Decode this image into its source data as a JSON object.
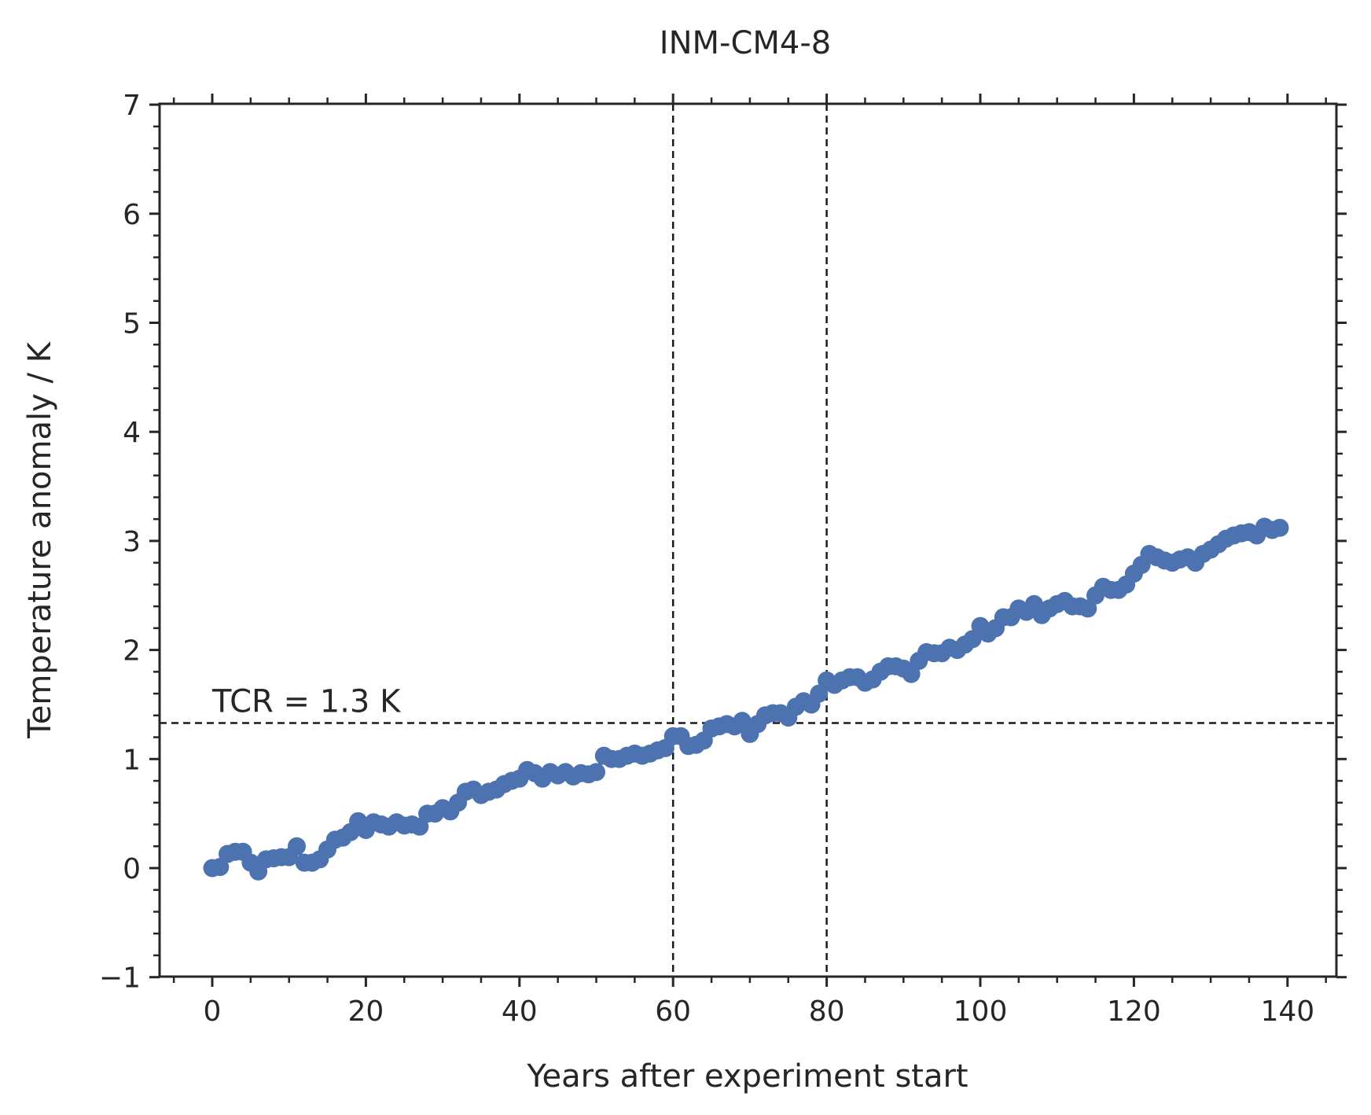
{
  "chart_data": {
    "type": "scatter",
    "title": "INM-CM4-8",
    "xlabel": "Years after experiment start",
    "ylabel": "Temperature anomaly / K",
    "xlim": [
      -7,
      147
    ],
    "ylim": [
      -1,
      7
    ],
    "xticks": [
      0,
      20,
      40,
      60,
      80,
      100,
      120,
      140
    ],
    "xtick_labels": [
      "0",
      "20",
      "40",
      "60",
      "80",
      "100",
      "120",
      "140"
    ],
    "yticks": [
      -1,
      0,
      1,
      2,
      3,
      4,
      5,
      6,
      7
    ],
    "ytick_labels": [
      "−1",
      "0",
      "1",
      "2",
      "3",
      "4",
      "5",
      "6",
      "7"
    ],
    "grid": false,
    "series_color": "#4c72b0",
    "reference_lines": {
      "vertical_x": [
        60,
        80
      ],
      "horizontal_y": 1.33
    },
    "annotation": {
      "text": "TCR = 1.3 K",
      "x": 0,
      "y": 1.43
    },
    "x": [
      0,
      1,
      2,
      3,
      4,
      5,
      6,
      7,
      8,
      9,
      10,
      11,
      12,
      13,
      14,
      15,
      16,
      17,
      18,
      19,
      20,
      21,
      22,
      23,
      24,
      25,
      26,
      27,
      28,
      29,
      30,
      31,
      32,
      33,
      34,
      35,
      36,
      37,
      38,
      39,
      40,
      41,
      42,
      43,
      44,
      45,
      46,
      47,
      48,
      49,
      50,
      51,
      52,
      53,
      54,
      55,
      56,
      57,
      58,
      59,
      60,
      61,
      62,
      63,
      64,
      65,
      66,
      67,
      68,
      69,
      70,
      71,
      72,
      73,
      74,
      75,
      76,
      77,
      78,
      79,
      80,
      81,
      82,
      83,
      84,
      85,
      86,
      87,
      88,
      89,
      90,
      91,
      92,
      93,
      94,
      95,
      96,
      97,
      98,
      99,
      100,
      101,
      102,
      103,
      104,
      105,
      106,
      107,
      108,
      109,
      110,
      111,
      112,
      113,
      114,
      115,
      116,
      117,
      118,
      119,
      120,
      121,
      122,
      123,
      124,
      125,
      126,
      127,
      128,
      129,
      130,
      131,
      132,
      133,
      134,
      135,
      136,
      137,
      138,
      139
    ],
    "y": [
      0.0,
      0.01,
      0.13,
      0.15,
      0.15,
      0.05,
      -0.03,
      0.08,
      0.09,
      0.1,
      0.1,
      0.2,
      0.05,
      0.05,
      0.08,
      0.17,
      0.26,
      0.28,
      0.33,
      0.43,
      0.35,
      0.42,
      0.4,
      0.38,
      0.42,
      0.39,
      0.4,
      0.38,
      0.5,
      0.5,
      0.55,
      0.52,
      0.6,
      0.7,
      0.72,
      0.67,
      0.7,
      0.72,
      0.77,
      0.8,
      0.82,
      0.9,
      0.87,
      0.82,
      0.88,
      0.85,
      0.88,
      0.84,
      0.87,
      0.86,
      0.88,
      1.03,
      1.0,
      1.0,
      1.03,
      1.05,
      1.03,
      1.05,
      1.08,
      1.1,
      1.21,
      1.21,
      1.12,
      1.13,
      1.17,
      1.28,
      1.3,
      1.32,
      1.3,
      1.35,
      1.23,
      1.32,
      1.4,
      1.42,
      1.42,
      1.38,
      1.48,
      1.53,
      1.5,
      1.6,
      1.72,
      1.68,
      1.72,
      1.75,
      1.75,
      1.7,
      1.73,
      1.8,
      1.85,
      1.85,
      1.83,
      1.78,
      1.9,
      1.98,
      1.97,
      1.97,
      2.02,
      2.0,
      2.05,
      2.1,
      2.22,
      2.15,
      2.2,
      2.3,
      2.3,
      2.38,
      2.35,
      2.42,
      2.32,
      2.38,
      2.42,
      2.45,
      2.4,
      2.4,
      2.38,
      2.5,
      2.58,
      2.55,
      2.55,
      2.6,
      2.7,
      2.78,
      2.88,
      2.85,
      2.82,
      2.8,
      2.83,
      2.85,
      2.8,
      2.88,
      2.92,
      2.97,
      3.02,
      3.05,
      3.07,
      3.08,
      3.05,
      3.13,
      3.1,
      3.12
    ]
  }
}
